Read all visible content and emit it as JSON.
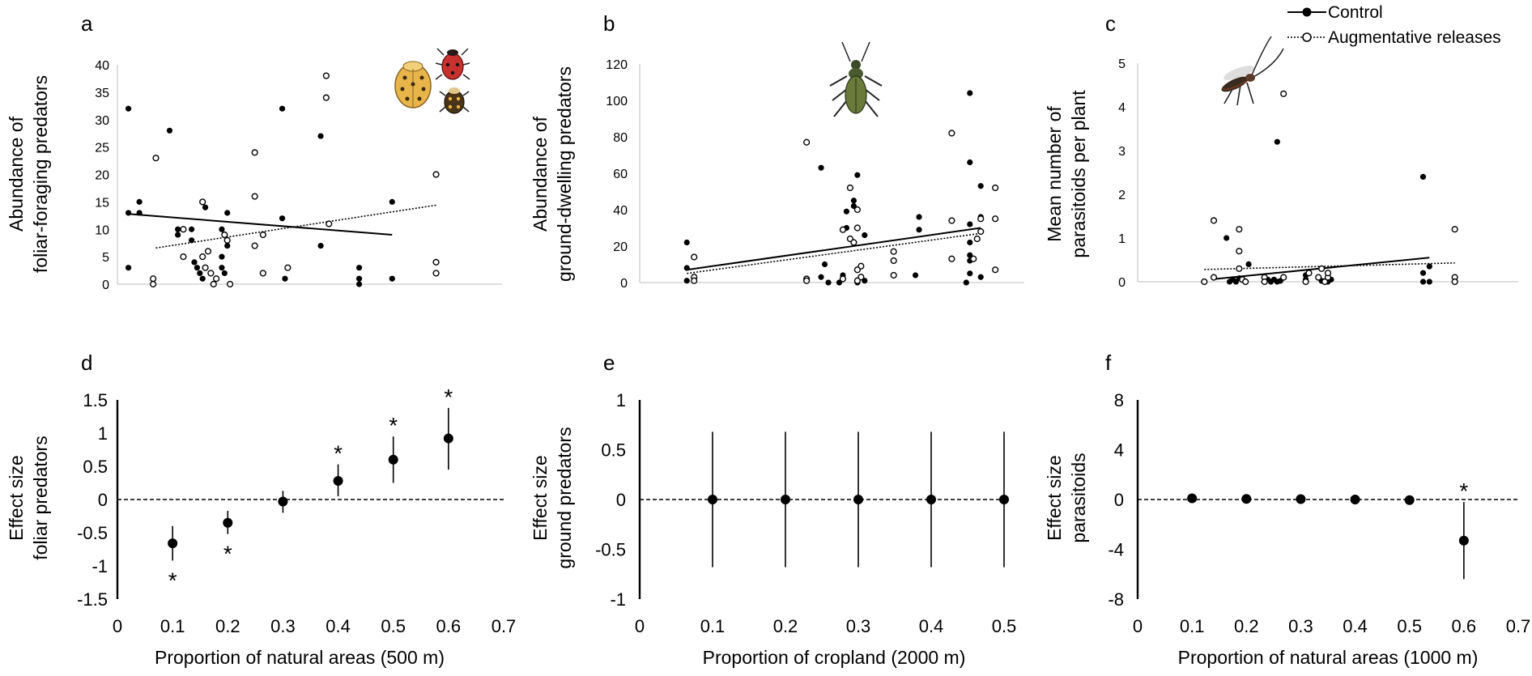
{
  "legend": {
    "control": "Control",
    "augmentative": "Augmentative releases"
  },
  "chart_data": [
    {
      "id": "a",
      "letter": "a",
      "type": "scatter",
      "ylabel": [
        "Abundance of",
        "foliar-foraging predators"
      ],
      "xlim": [
        0,
        0.7
      ],
      "ylim": [
        0,
        40
      ],
      "yticks": [
        "0",
        "5",
        "10",
        "15",
        "20",
        "25",
        "30",
        "35",
        "40"
      ],
      "series": [
        {
          "name": "Control",
          "style": "filled",
          "points": [
            [
              0.02,
              32
            ],
            [
              0.02,
              13
            ],
            [
              0.02,
              3
            ],
            [
              0.04,
              15
            ],
            [
              0.04,
              13
            ],
            [
              0.095,
              28
            ],
            [
              0.11,
              10
            ],
            [
              0.11,
              9
            ],
            [
              0.135,
              10
            ],
            [
              0.135,
              8
            ],
            [
              0.14,
              4
            ],
            [
              0.145,
              3
            ],
            [
              0.15,
              2
            ],
            [
              0.155,
              1
            ],
            [
              0.16,
              14
            ],
            [
              0.19,
              10
            ],
            [
              0.19,
              5
            ],
            [
              0.19,
              3
            ],
            [
              0.195,
              2
            ],
            [
              0.2,
              13
            ],
            [
              0.2,
              7
            ],
            [
              0.3,
              12
            ],
            [
              0.3,
              32
            ],
            [
              0.305,
              1
            ],
            [
              0.37,
              27
            ],
            [
              0.37,
              7
            ],
            [
              0.44,
              3
            ],
            [
              0.44,
              1
            ],
            [
              0.44,
              0
            ],
            [
              0.5,
              15
            ],
            [
              0.5,
              1
            ]
          ]
        },
        {
          "name": "Augmentative releases",
          "style": "open",
          "points": [
            [
              0.065,
              1
            ],
            [
              0.065,
              0
            ],
            [
              0.07,
              23
            ],
            [
              0.12,
              10
            ],
            [
              0.12,
              5
            ],
            [
              0.155,
              15
            ],
            [
              0.155,
              5
            ],
            [
              0.16,
              3
            ],
            [
              0.165,
              6
            ],
            [
              0.17,
              2
            ],
            [
              0.175,
              0
            ],
            [
              0.18,
              1
            ],
            [
              0.195,
              9
            ],
            [
              0.2,
              8
            ],
            [
              0.205,
              0
            ],
            [
              0.25,
              24
            ],
            [
              0.25,
              16
            ],
            [
              0.25,
              7
            ],
            [
              0.265,
              9
            ],
            [
              0.265,
              2
            ],
            [
              0.31,
              3
            ],
            [
              0.38,
              38
            ],
            [
              0.38,
              34
            ],
            [
              0.385,
              11
            ],
            [
              0.58,
              20
            ],
            [
              0.58,
              4
            ],
            [
              0.58,
              2
            ]
          ]
        }
      ],
      "trend": {
        "control": [
          [
            0.02,
            12.8
          ],
          [
            0.5,
            9.0
          ]
        ],
        "augmentative": [
          [
            0.07,
            6.6
          ],
          [
            0.58,
            14.4
          ]
        ]
      },
      "icon": "ladybird-beetles-icon"
    },
    {
      "id": "b",
      "letter": "b",
      "type": "scatter",
      "ylabel": [
        "Abundance of",
        "ground-dwelling predators"
      ],
      "xlim": [
        0,
        0.53
      ],
      "ylim": [
        0,
        120
      ],
      "yticks": [
        "0",
        "20",
        "40",
        "60",
        "80",
        "100",
        "120"
      ],
      "series": [
        {
          "name": "Control",
          "style": "filled",
          "points": [
            [
              0.065,
              22
            ],
            [
              0.065,
              8
            ],
            [
              0.065,
              1
            ],
            [
              0.25,
              63
            ],
            [
              0.255,
              10
            ],
            [
              0.25,
              3
            ],
            [
              0.26,
              0
            ],
            [
              0.285,
              39
            ],
            [
              0.285,
              30
            ],
            [
              0.28,
              4
            ],
            [
              0.275,
              0
            ],
            [
              0.295,
              45
            ],
            [
              0.295,
              42
            ],
            [
              0.3,
              59
            ],
            [
              0.3,
              0
            ],
            [
              0.31,
              26
            ],
            [
              0.31,
              1
            ],
            [
              0.385,
              36
            ],
            [
              0.385,
              29
            ],
            [
              0.38,
              4
            ],
            [
              0.455,
              104
            ],
            [
              0.455,
              66
            ],
            [
              0.455,
              32
            ],
            [
              0.455,
              22
            ],
            [
              0.455,
              15
            ],
            [
              0.455,
              12
            ],
            [
              0.455,
              5
            ],
            [
              0.45,
              0
            ],
            [
              0.47,
              53
            ],
            [
              0.47,
              36
            ],
            [
              0.47,
              3
            ]
          ]
        },
        {
          "name": "Augmentative releases",
          "style": "open",
          "points": [
            [
              0.075,
              14
            ],
            [
              0.075,
              3
            ],
            [
              0.075,
              1
            ],
            [
              0.23,
              77
            ],
            [
              0.23,
              2
            ],
            [
              0.23,
              1
            ],
            [
              0.28,
              29
            ],
            [
              0.28,
              2
            ],
            [
              0.29,
              52
            ],
            [
              0.29,
              24
            ],
            [
              0.295,
              22
            ],
            [
              0.3,
              40
            ],
            [
              0.3,
              30
            ],
            [
              0.305,
              9
            ],
            [
              0.3,
              7
            ],
            [
              0.305,
              3
            ],
            [
              0.3,
              1
            ],
            [
              0.35,
              17
            ],
            [
              0.35,
              12
            ],
            [
              0.35,
              4
            ],
            [
              0.43,
              82
            ],
            [
              0.43,
              34
            ],
            [
              0.43,
              13
            ],
            [
              0.47,
              28
            ],
            [
              0.465,
              24
            ],
            [
              0.46,
              13
            ],
            [
              0.47,
              35
            ],
            [
              0.49,
              52
            ],
            [
              0.49,
              35
            ],
            [
              0.49,
              7
            ]
          ]
        }
      ],
      "trend": {
        "control": [
          [
            0.065,
            7
          ],
          [
            0.47,
            30
          ]
        ],
        "augmentative": [
          [
            0.065,
            5
          ],
          [
            0.47,
            27
          ]
        ]
      },
      "icon": "ground-beetle-icon"
    },
    {
      "id": "c",
      "letter": "c",
      "type": "scatter",
      "ylabel": [
        "Mean number of",
        "parasitoids per plant"
      ],
      "xlim": [
        0,
        0.6
      ],
      "ylim": [
        0,
        5
      ],
      "yticks": [
        "0",
        "1",
        "2",
        "3",
        "4",
        "5"
      ],
      "series": [
        {
          "name": "Control",
          "style": "filled",
          "points": [
            [
              0.14,
              1.0
            ],
            [
              0.145,
              0
            ],
            [
              0.15,
              0.05
            ],
            [
              0.155,
              0
            ],
            [
              0.16,
              0.08
            ],
            [
              0.175,
              0.4
            ],
            [
              0.17,
              0
            ],
            [
              0.2,
              0
            ],
            [
              0.205,
              0.05
            ],
            [
              0.21,
              0
            ],
            [
              0.215,
              0.05
            ],
            [
              0.22,
              3.2
            ],
            [
              0.22,
              0
            ],
            [
              0.225,
              0.02
            ],
            [
              0.265,
              0.15
            ],
            [
              0.265,
              0.05
            ],
            [
              0.265,
              0
            ],
            [
              0.3,
              0
            ],
            [
              0.305,
              0.05
            ],
            [
              0.29,
              0.02
            ],
            [
              0.45,
              2.4
            ],
            [
              0.45,
              0.2
            ],
            [
              0.45,
              0
            ],
            [
              0.46,
              0.35
            ],
            [
              0.46,
              0
            ]
          ]
        },
        {
          "name": "Augmentative releases",
          "style": "open",
          "points": [
            [
              0.105,
              0
            ],
            [
              0.12,
              1.4
            ],
            [
              0.12,
              0.1
            ],
            [
              0.16,
              1.2
            ],
            [
              0.16,
              0.7
            ],
            [
              0.16,
              0.3
            ],
            [
              0.165,
              0.05
            ],
            [
              0.17,
              0
            ],
            [
              0.2,
              0.1
            ],
            [
              0.2,
              0
            ],
            [
              0.23,
              4.3
            ],
            [
              0.23,
              0.1
            ],
            [
              0.27,
              0.2
            ],
            [
              0.265,
              0
            ],
            [
              0.285,
              0.1
            ],
            [
              0.29,
              0.3
            ],
            [
              0.295,
              0
            ],
            [
              0.3,
              0.1
            ],
            [
              0.3,
              0.2
            ],
            [
              0.5,
              1.2
            ],
            [
              0.5,
              0.1
            ],
            [
              0.5,
              0
            ]
          ]
        }
      ],
      "trend": {
        "control": [
          [
            0.12,
            0.06
          ],
          [
            0.46,
            0.55
          ]
        ],
        "augmentative": [
          [
            0.105,
            0.28
          ],
          [
            0.5,
            0.43
          ]
        ]
      },
      "icon": "parasitoid-wasp-icon"
    },
    {
      "id": "d",
      "letter": "d",
      "type": "errorbar",
      "ylabel": [
        "Effect size",
        "foliar predators"
      ],
      "xlabel": "Proportion of natural areas (500 m)",
      "xlim": [
        0,
        0.7
      ],
      "ylim": [
        -1.5,
        1.5
      ],
      "xticks": [
        "0",
        "0.1",
        "0.2",
        "0.3",
        "0.4",
        "0.5",
        "0.6",
        "0.7"
      ],
      "yticks": [
        "1.5",
        "1",
        "0.5",
        "0",
        "-0.5",
        "-1",
        "-1.5"
      ],
      "points": [
        {
          "x": 0.1,
          "y": -0.66,
          "lo": -0.92,
          "hi": -0.4,
          "sig": "below"
        },
        {
          "x": 0.2,
          "y": -0.35,
          "lo": -0.52,
          "hi": -0.17,
          "sig": "below"
        },
        {
          "x": 0.3,
          "y": -0.03,
          "lo": -0.2,
          "hi": 0.13,
          "sig": ""
        },
        {
          "x": 0.4,
          "y": 0.28,
          "lo": 0.05,
          "hi": 0.53,
          "sig": "above"
        },
        {
          "x": 0.5,
          "y": 0.6,
          "lo": 0.25,
          "hi": 0.95,
          "sig": "above"
        },
        {
          "x": 0.6,
          "y": 0.92,
          "lo": 0.45,
          "hi": 1.38,
          "sig": "above"
        }
      ],
      "star": "*"
    },
    {
      "id": "e",
      "letter": "e",
      "type": "errorbar",
      "ylabel": [
        "Effect size",
        "ground predators"
      ],
      "xlabel": "Proportion of cropland (2000 m)",
      "xlim": [
        0,
        0.5
      ],
      "ylim": [
        -1,
        1
      ],
      "xticks": [
        "0",
        "0.1",
        "0.2",
        "0.3",
        "0.4",
        "0.5"
      ],
      "yticks": [
        "1",
        "0.5",
        "0",
        "-0.5",
        "-1"
      ],
      "points": [
        {
          "x": 0.1,
          "y": 0,
          "lo": -0.68,
          "hi": 0.68,
          "sig": ""
        },
        {
          "x": 0.2,
          "y": 0,
          "lo": -0.68,
          "hi": 0.68,
          "sig": ""
        },
        {
          "x": 0.3,
          "y": 0,
          "lo": -0.68,
          "hi": 0.68,
          "sig": ""
        },
        {
          "x": 0.4,
          "y": 0,
          "lo": -0.68,
          "hi": 0.68,
          "sig": ""
        },
        {
          "x": 0.5,
          "y": 0,
          "lo": -0.68,
          "hi": 0.68,
          "sig": ""
        }
      ],
      "star": "*"
    },
    {
      "id": "f",
      "letter": "f",
      "type": "errorbar",
      "ylabel": [
        "Effect size",
        "parasitoids"
      ],
      "xlabel": "Proportion of natural areas (1000 m)",
      "xlim": [
        0,
        0.7
      ],
      "ylim": [
        -8,
        8
      ],
      "xticks": [
        "0",
        "0.1",
        "0.2",
        "0.3",
        "0.4",
        "0.5",
        "0.6",
        "0.7"
      ],
      "yticks": [
        "8",
        "4",
        "0",
        "-4",
        "-8"
      ],
      "points": [
        {
          "x": 0.1,
          "y": 0.1,
          "lo": 0.1,
          "hi": 0.1,
          "sig": ""
        },
        {
          "x": 0.2,
          "y": 0.05,
          "lo": 0.05,
          "hi": 0.05,
          "sig": ""
        },
        {
          "x": 0.3,
          "y": 0.03,
          "lo": 0.03,
          "hi": 0.03,
          "sig": ""
        },
        {
          "x": 0.4,
          "y": 0.0,
          "lo": 0.0,
          "hi": 0.0,
          "sig": ""
        },
        {
          "x": 0.5,
          "y": -0.05,
          "lo": -0.05,
          "hi": -0.05,
          "sig": ""
        },
        {
          "x": 0.6,
          "y": -3.3,
          "lo": -6.4,
          "hi": -0.2,
          "sig": "above"
        }
      ],
      "star": "*"
    }
  ]
}
